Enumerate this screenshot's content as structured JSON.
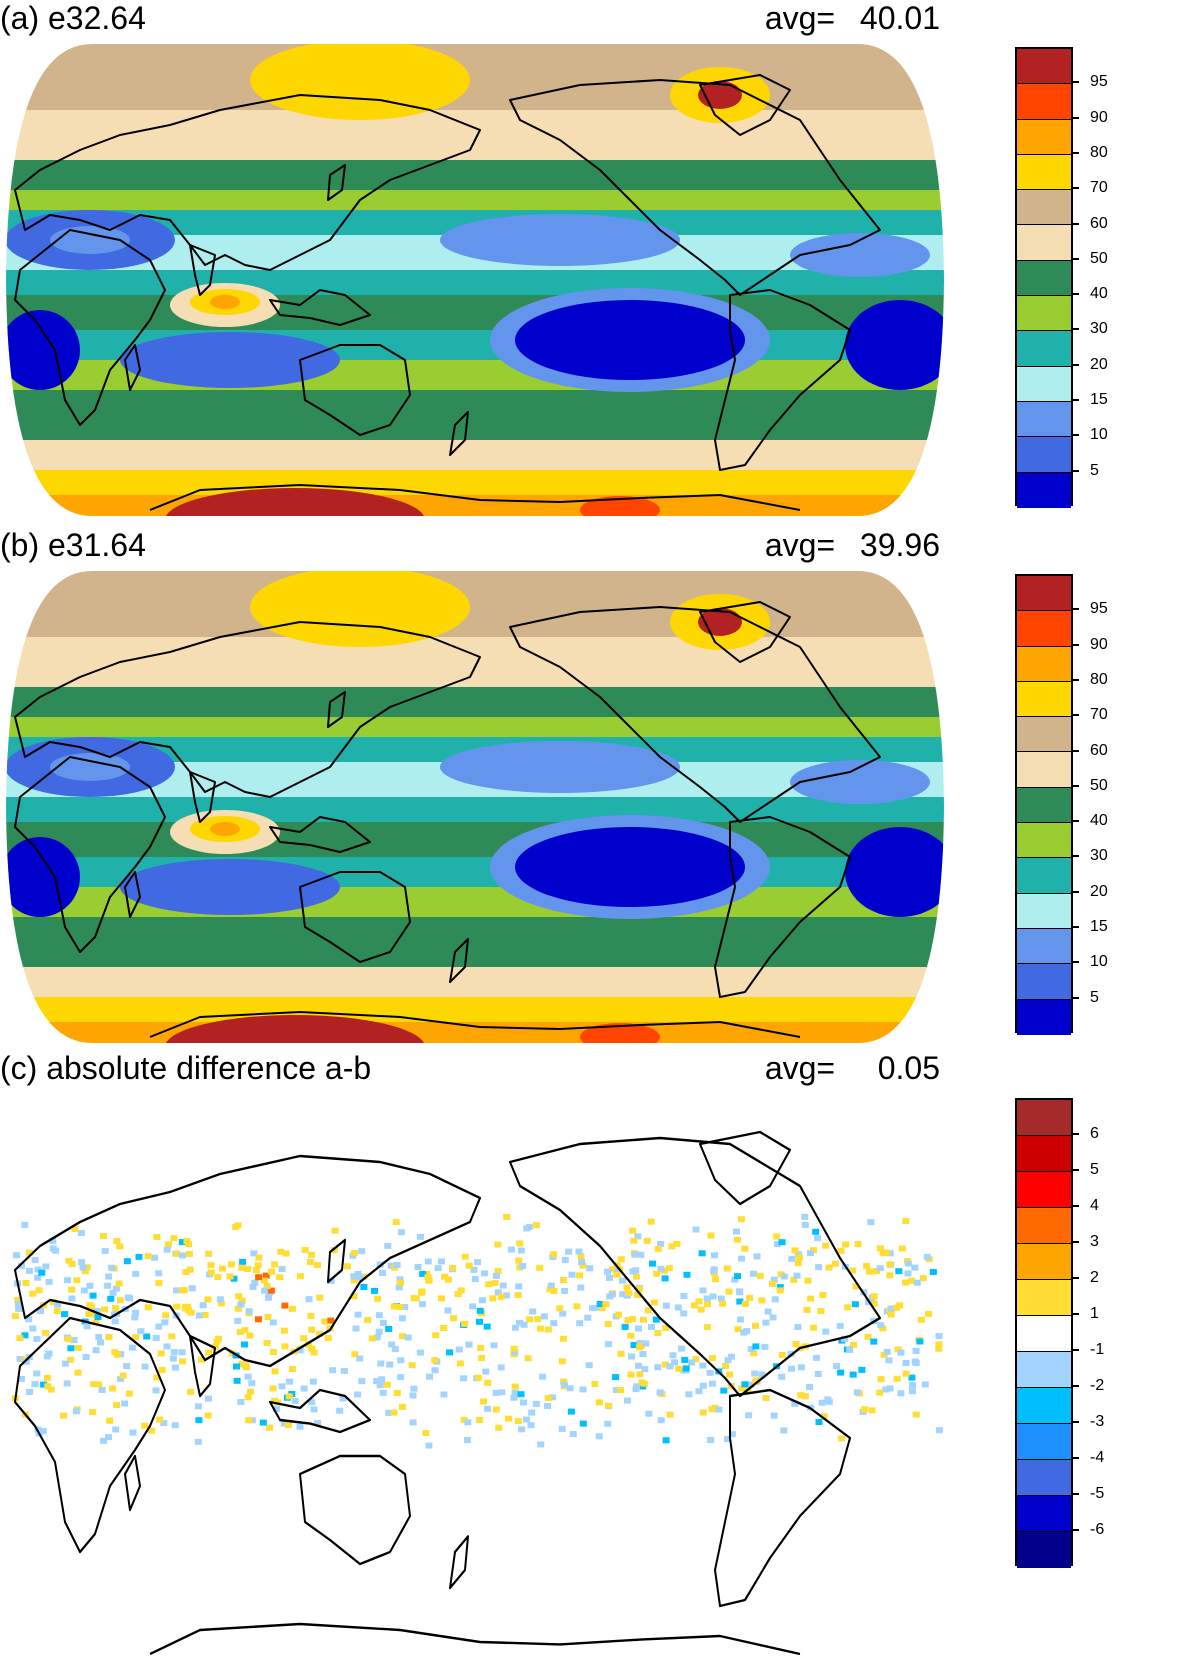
{
  "panels": [
    {
      "title": "(a) e32.64",
      "avg_label": "avg=",
      "avg_value": "40.01",
      "map_type": "filled-contour",
      "colorbar": {
        "colors": [
          "#b22222",
          "#ff4500",
          "#ffa500",
          "#ffd700",
          "#d2b48c",
          "#f5deb3",
          "#2e8b57",
          "#9acd32",
          "#20b2aa",
          "#afeeee",
          "#6495ed",
          "#4169e1",
          "#0000cd"
        ],
        "labels": [
          "95",
          "90",
          "80",
          "70",
          "60",
          "50",
          "40",
          "30",
          "20",
          "15",
          "10",
          "5"
        ]
      }
    },
    {
      "title": "(b) e31.64",
      "avg_label": "avg=",
      "avg_value": "39.96",
      "map_type": "filled-contour",
      "colorbar": {
        "colors": [
          "#b22222",
          "#ff4500",
          "#ffa500",
          "#ffd700",
          "#d2b48c",
          "#f5deb3",
          "#2e8b57",
          "#9acd32",
          "#20b2aa",
          "#afeeee",
          "#6495ed",
          "#4169e1",
          "#0000cd"
        ],
        "labels": [
          "95",
          "90",
          "80",
          "70",
          "60",
          "50",
          "40",
          "30",
          "20",
          "15",
          "10",
          "5"
        ]
      }
    },
    {
      "title": "(c) absolute difference a-b",
      "avg_label": "avg=",
      "avg_value": "0.05",
      "map_type": "difference",
      "colorbar": {
        "colors": [
          "#a52a2a",
          "#cd0000",
          "#ff0000",
          "#ff6a00",
          "#ffa500",
          "#ffdd33",
          "#ffffff",
          "#a3d3ff",
          "#00bfff",
          "#1e90ff",
          "#4169e1",
          "#0000cd",
          "#00008b"
        ],
        "labels": [
          "6",
          "5",
          "4",
          "3",
          "2",
          "1",
          "-1",
          "-2",
          "-3",
          "-4",
          "-5",
          "-6"
        ]
      }
    }
  ]
}
